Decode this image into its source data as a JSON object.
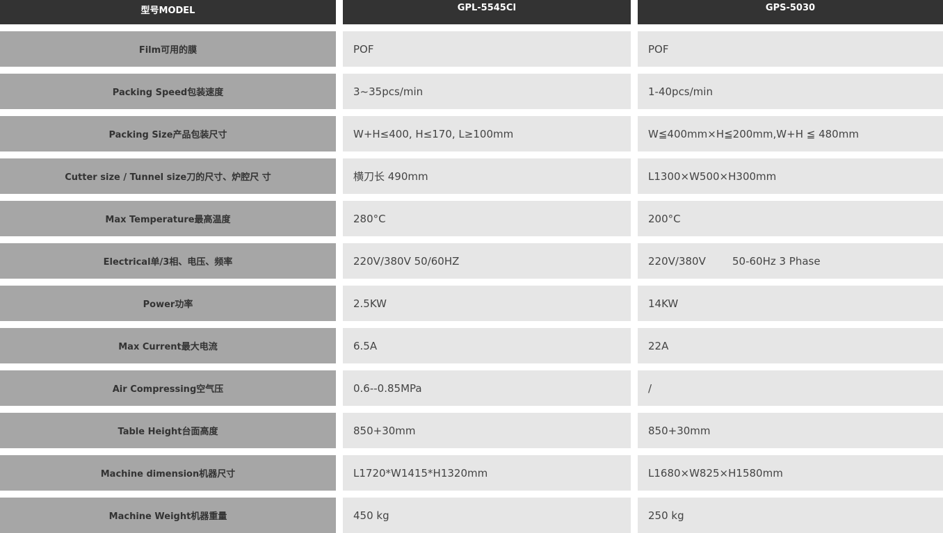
{
  "colors": {
    "header_bg": "#333333",
    "label_bg": "#a6a6a6",
    "value_bg": "#e6e6e6"
  },
  "header": {
    "label": "型号MODEL",
    "model_1": "GPL-5545CI",
    "model_2": "GPS-5030"
  },
  "rows": [
    {
      "label": "Film可用的膜",
      "v1": "POF",
      "v2": "POF"
    },
    {
      "label": "Packing Speed包装速度",
      "v1": "3~35pcs/min",
      "v2": "1-40pcs/min"
    },
    {
      "label": "Packing Size产品包装尺寸",
      "v1": "W+H≤400, H≤170, L≥100mm",
      "v2": "W≦400mm×H≦200mm,W+H ≦ 480mm"
    },
    {
      "label": "Cutter size / Tunnel size刀的尺寸、炉腔尺 寸",
      "v1": "横刀长 490mm",
      "v2": "L1300×W500×H300mm"
    },
    {
      "label": "Max Temperature最高温度",
      "v1": "280°C",
      "v2": "200°C"
    },
    {
      "label": "Electrical单/3相、电压、频率",
      "v1": "220V/380V 50/60HZ",
      "v2": "220V/380V        50-60Hz 3 Phase"
    },
    {
      "label": "Power功率",
      "v1": "2.5KW",
      "v2": "14KW"
    },
    {
      "label": "Max Current最大电流",
      "v1": "6.5A",
      "v2": "22A"
    },
    {
      "label": "Air Compressing空气压",
      "v1": "0.6--0.85MPa",
      "v2": "/"
    },
    {
      "label": "Table Height台面高度",
      "v1": "850+30mm",
      "v2": "850+30mm"
    },
    {
      "label": "Machine dimension机器尺寸",
      "v1": "L1720*W1415*H1320mm",
      "v2": "L1680×W825×H1580mm"
    },
    {
      "label": "Machine Weight机器重量",
      "v1": "450 kg",
      "v2": "250 kg"
    }
  ]
}
